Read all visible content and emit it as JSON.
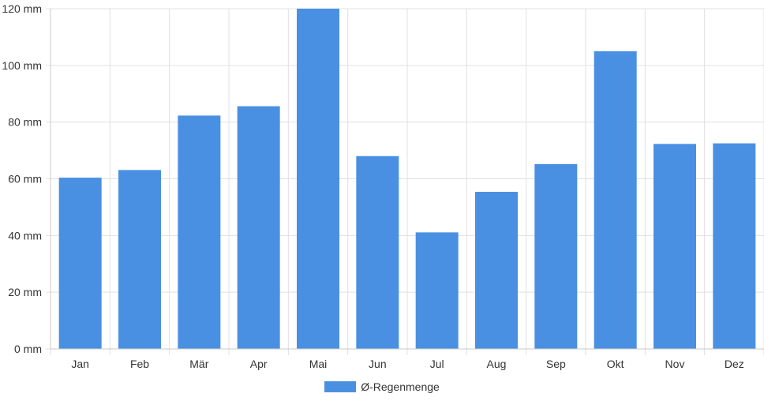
{
  "chart_data": {
    "type": "bar",
    "categories": [
      "Jan",
      "Feb",
      "Mär",
      "Apr",
      "Mai",
      "Jun",
      "Jul",
      "Aug",
      "Sep",
      "Okt",
      "Nov",
      "Dez"
    ],
    "series": [
      {
        "name": "Ø-Regenmenge",
        "values": [
          60.4,
          63.1,
          82.3,
          85.6,
          120,
          68.0,
          41.1,
          55.4,
          65.2,
          105.0,
          72.3,
          72.5
        ],
        "color": "#4a90e2"
      }
    ],
    "ylim": [
      0,
      120
    ],
    "yticks": [
      0,
      20,
      40,
      60,
      80,
      100,
      120
    ],
    "ytick_labels": [
      "0 mm",
      "20 mm",
      "40 mm",
      "60 mm",
      "80 mm",
      "100 mm",
      "120 mm"
    ],
    "grid": true,
    "legend_position": "bottom-center"
  }
}
